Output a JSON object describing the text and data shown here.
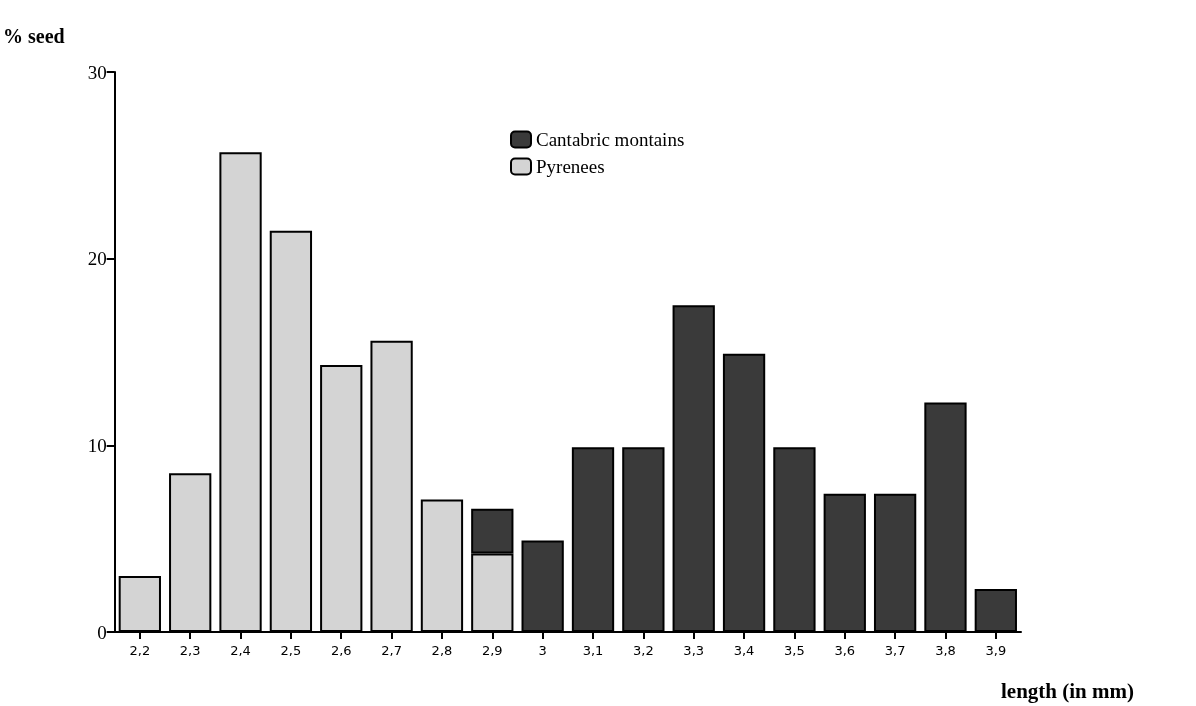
{
  "chart_data": {
    "type": "bar",
    "xlabel": "length (in mm)",
    "ylabel": "% seed",
    "categories": [
      "2,2",
      "2,3",
      "2,4",
      "2,5",
      "2,6",
      "2,7",
      "2,8",
      "2,9",
      "3",
      "3,1",
      "3,2",
      "3,3",
      "3,4",
      "3,5",
      "3,6",
      "3,7",
      "3,8",
      "3,9"
    ],
    "series": [
      {
        "name": "Pyrenees",
        "color": "#d4d4d4",
        "values": [
          3,
          8.5,
          25.7,
          21.5,
          14.3,
          15.6,
          7.1,
          4.2,
          null,
          null,
          null,
          null,
          null,
          null,
          null,
          null,
          null,
          null
        ]
      },
      {
        "name": "Cantabric montains",
        "color": "#3a3a3a",
        "values": [
          null,
          null,
          null,
          null,
          null,
          null,
          null,
          2.4,
          4.9,
          9.9,
          9.9,
          17.5,
          14.9,
          9.9,
          7.4,
          7.4,
          12.3,
          2.3
        ]
      }
    ],
    "stacked": true,
    "ylim": [
      0,
      30
    ],
    "yticks": [
      0,
      10,
      20,
      30
    ],
    "grid": false,
    "legend": "top"
  }
}
